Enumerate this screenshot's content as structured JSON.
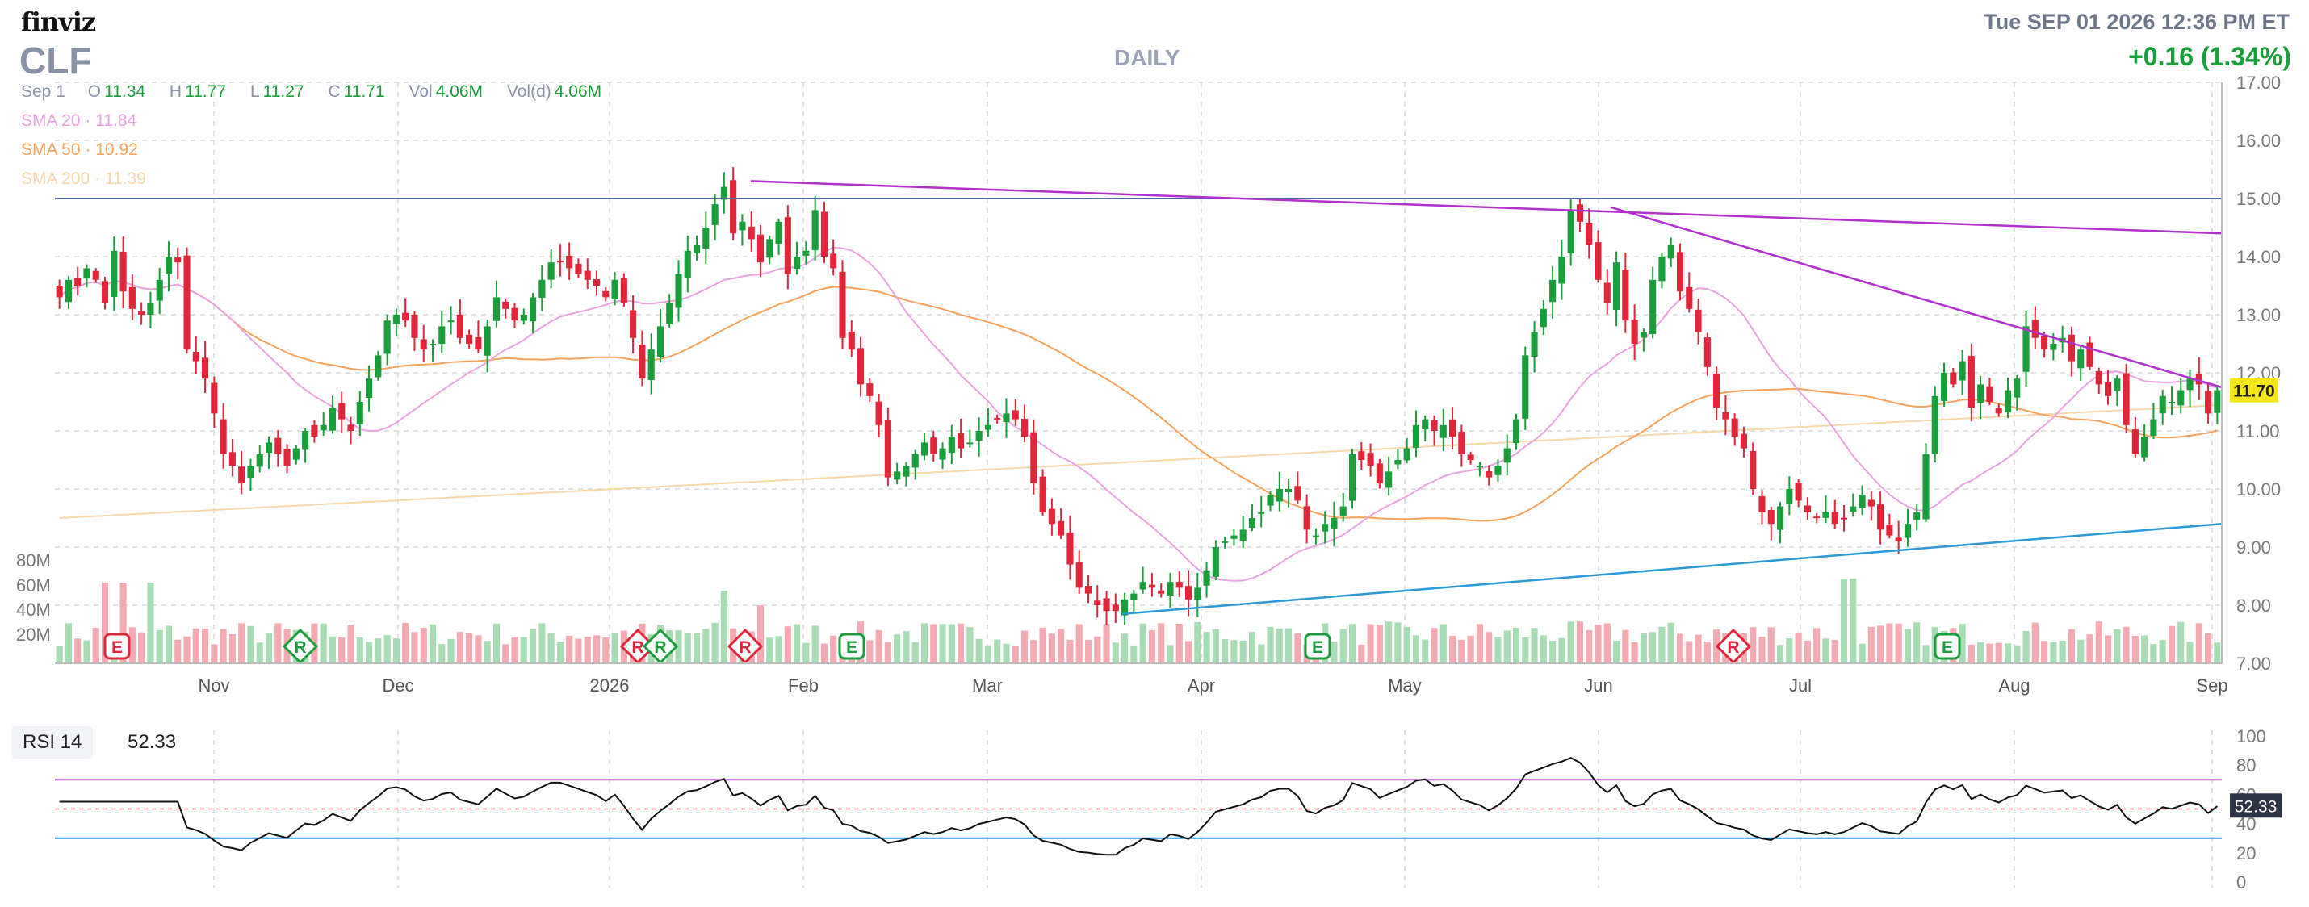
{
  "header": {
    "logo_text": "finviz",
    "ticker": "CLF",
    "period": "DAILY",
    "datetime": "Tue SEP 01 2026 12:36 PM ET",
    "change": "+0.16 (1.34%)"
  },
  "ohlc": {
    "date": "Sep 1",
    "o_label": "O",
    "o": "11.34",
    "h_label": "H",
    "h": "11.77",
    "l_label": "L",
    "l": "11.27",
    "c_label": "C",
    "c": "11.71",
    "vol_label": "Vol",
    "vol": "4.06M",
    "vold_label": "Vol(d)",
    "vold": "4.06M"
  },
  "sma": [
    {
      "label": "SMA 20",
      "value": "11.84",
      "color": "#e9a3e0"
    },
    {
      "label": "SMA 50",
      "value": "10.92",
      "color": "#f5a35c"
    },
    {
      "label": "SMA 200",
      "value": "11.39",
      "color": "#f7d7a8"
    }
  ],
  "colors": {
    "up": "#1a9e3b",
    "down": "#e0263a",
    "vol_up": "#a8dcb5",
    "vol_down": "#f3aab3",
    "trendline_purple": "#b42fcf",
    "hline": "#5468a8",
    "trendline_blue": "#2a9ad6",
    "price_badge": "#f5e61a",
    "rsi_line": "#111111",
    "grid": "#d9d9d9"
  },
  "rsi": {
    "label": "RSI 14",
    "value": "52.33",
    "ticks": [
      "100",
      "80",
      "60",
      "40",
      "20",
      "0"
    ]
  },
  "chart_data": {
    "type": "candlestick",
    "title": "",
    "ylim": [
      7,
      17
    ],
    "y_ticks": [
      "17.00",
      "16.00",
      "15.00",
      "14.00",
      "13.00",
      "12.00",
      "11.00",
      "10.00",
      "9.00",
      "8.00",
      "7.00"
    ],
    "x_ticks": [
      "Nov",
      "Dec",
      "2026",
      "Feb",
      "Mar",
      "Apr",
      "May",
      "Jun",
      "Jul",
      "Aug",
      "Sep"
    ],
    "volume_ticks": [
      "80M",
      "60M",
      "40M",
      "20M"
    ],
    "last_price": "11.70",
    "last_rsi": "52.33",
    "close": [
      13.3,
      13.6,
      13.5,
      13.8,
      13.6,
      13.2,
      14.1,
      13.4,
      13.1,
      13.0,
      13.2,
      13.6,
      14.0,
      13.9,
      12.4,
      12.2,
      11.9,
      11.3,
      10.6,
      10.4,
      10.1,
      10.4,
      10.6,
      10.8,
      10.6,
      10.4,
      10.7,
      11.0,
      10.9,
      11.1,
      11.4,
      11.2,
      11.0,
      11.5,
      11.9,
      12.3,
      12.9,
      13.0,
      12.9,
      12.6,
      12.4,
      12.5,
      12.8,
      12.9,
      12.6,
      12.5,
      12.4,
      12.8,
      13.3,
      13.1,
      12.9,
      13.0,
      13.3,
      13.6,
      13.9,
      13.9,
      13.8,
      13.7,
      13.6,
      13.5,
      13.3,
      13.6,
      13.2,
      12.6,
      11.9,
      12.4,
      12.8,
      13.2,
      13.7,
      14.1,
      14.2,
      14.5,
      14.9,
      15.2,
      14.4,
      14.6,
      14.3,
      13.9,
      14.3,
      14.6,
      13.7,
      14.0,
      14.1,
      14.8,
      14.0,
      13.8,
      12.6,
      12.4,
      11.8,
      11.6,
      11.1,
      10.2,
      10.3,
      10.4,
      10.6,
      10.8,
      10.6,
      10.7,
      10.9,
      10.7,
      10.8,
      11.0,
      11.1,
      11.2,
      11.3,
      11.2,
      10.9,
      10.1,
      9.6,
      9.4,
      9.2,
      8.7,
      8.3,
      8.2,
      8.0,
      7.9,
      7.9,
      8.1,
      8.2,
      8.4,
      8.3,
      8.2,
      8.4,
      8.3,
      8.1,
      8.3,
      8.6,
      9.0,
      9.1,
      9.2,
      9.3,
      9.5,
      9.6,
      9.9,
      10.0,
      10.0,
      9.8,
      9.3,
      9.2,
      9.4,
      9.5,
      9.7,
      10.6,
      10.5,
      10.4,
      10.1,
      10.3,
      10.5,
      10.7,
      11.1,
      11.2,
      11.0,
      11.1,
      10.9,
      10.6,
      10.5,
      10.4,
      10.2,
      10.4,
      10.7,
      11.2,
      12.3,
      12.7,
      13.1,
      13.6,
      14.0,
      14.8,
      14.6,
      14.2,
      13.6,
      13.2,
      13.9,
      12.9,
      12.5,
      12.7,
      13.6,
      14.0,
      14.2,
      13.4,
      13.1,
      12.7,
      12.1,
      11.4,
      11.2,
      10.9,
      10.7,
      10.0,
      9.6,
      9.4,
      9.7,
      10.0,
      9.8,
      9.6,
      9.5,
      9.6,
      9.4,
      9.5,
      9.7,
      9.9,
      9.7,
      9.3,
      9.2,
      9.1,
      9.4,
      9.6,
      10.6,
      11.6,
      12.0,
      11.8,
      12.2,
      11.4,
      11.8,
      11.5,
      11.3,
      11.7,
      11.9,
      12.8,
      12.6,
      12.4,
      12.5,
      12.6,
      12.2,
      12.4,
      12.1,
      11.8,
      11.6,
      11.9,
      11.1,
      10.6,
      10.9,
      11.2,
      11.6,
      11.5,
      11.7,
      11.9,
      11.8,
      11.3,
      11.7
    ]
  }
}
